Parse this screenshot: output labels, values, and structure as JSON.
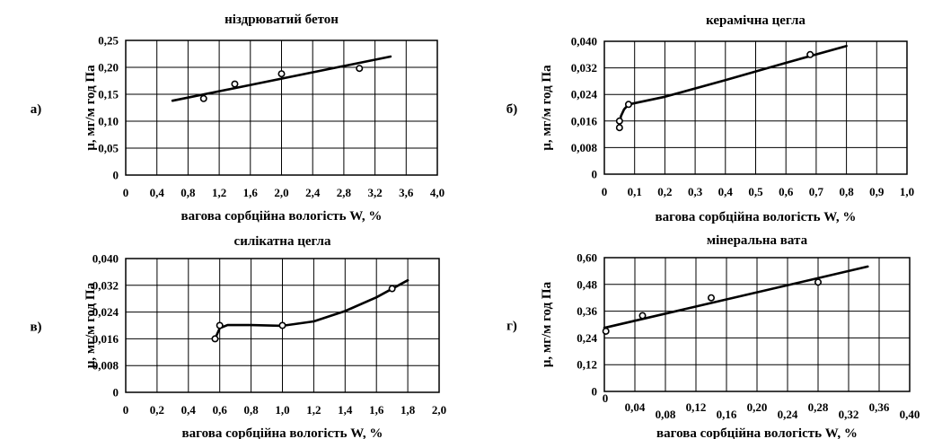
{
  "chart_data": [
    {
      "letter": "а)",
      "type": "scatter",
      "title": "ніздрюватий бетон",
      "xlabel": "вагова сорбційна вологість W, %",
      "ylabel": "μ, мг/м год Па",
      "xlim": [
        0,
        4.0
      ],
      "ylim": [
        0,
        0.25
      ],
      "x_ticks": [
        0,
        0.4,
        0.8,
        1.2,
        1.6,
        2.0,
        2.4,
        2.8,
        3.2,
        3.6,
        4.0
      ],
      "x_tick_labels": [
        "0",
        "0,4",
        "0,8",
        "1,2",
        "1,6",
        "2,0",
        "2,4",
        "2,8",
        "3,2",
        "3,6",
        "4,0"
      ],
      "y_ticks": [
        0,
        0.05,
        0.1,
        0.15,
        0.2,
        0.25
      ],
      "y_tick_labels": [
        "0",
        "0,05",
        "0,10",
        "0,15",
        "0,20",
        "0,25"
      ],
      "grid": true,
      "points": [
        {
          "x": 1.0,
          "y": 0.142
        },
        {
          "x": 1.4,
          "y": 0.169
        },
        {
          "x": 2.0,
          "y": 0.188
        },
        {
          "x": 3.0,
          "y": 0.198
        }
      ],
      "curve": [
        {
          "x": 0.6,
          "y": 0.138
        },
        {
          "x": 3.4,
          "y": 0.22
        }
      ]
    },
    {
      "letter": "б)",
      "type": "scatter",
      "title": "керамічна цегла",
      "xlabel": "вагова сорбційна вологість W, %",
      "ylabel": "μ, мг/м год Па",
      "xlim": [
        0,
        1.0
      ],
      "ylim": [
        0,
        0.04
      ],
      "x_ticks": [
        0,
        0.1,
        0.2,
        0.3,
        0.4,
        0.5,
        0.6,
        0.7,
        0.8,
        0.9,
        1.0
      ],
      "x_tick_labels": [
        "0",
        "0,1",
        "0,2",
        "0,3",
        "0,4",
        "0,5",
        "0,6",
        "0,7",
        "0,8",
        "0,9",
        "1,0"
      ],
      "y_ticks": [
        0,
        0.008,
        0.016,
        0.024,
        0.032,
        0.04
      ],
      "y_tick_labels": [
        "0",
        "0,008",
        "0,016",
        "0,024",
        "0,032",
        "0,040"
      ],
      "grid": true,
      "points": [
        {
          "x": 0.05,
          "y": 0.014
        },
        {
          "x": 0.05,
          "y": 0.016
        },
        {
          "x": 0.08,
          "y": 0.021
        },
        {
          "x": 0.68,
          "y": 0.036
        }
      ],
      "curve": [
        {
          "x": 0.05,
          "y": 0.015
        },
        {
          "x": 0.055,
          "y": 0.0175
        },
        {
          "x": 0.065,
          "y": 0.0195
        },
        {
          "x": 0.08,
          "y": 0.021
        },
        {
          "x": 0.2,
          "y": 0.0233
        },
        {
          "x": 0.4,
          "y": 0.0283
        },
        {
          "x": 0.6,
          "y": 0.0335
        },
        {
          "x": 0.8,
          "y": 0.0386
        }
      ]
    },
    {
      "letter": "в)",
      "type": "scatter",
      "title": "силікатна цегла",
      "xlabel": "вагова сорбційна вологість W, %",
      "ylabel": "μ, мг/м год Па",
      "xlim": [
        0,
        2.0
      ],
      "ylim": [
        0,
        0.04
      ],
      "x_ticks": [
        0,
        0.2,
        0.4,
        0.6,
        0.8,
        1.0,
        1.2,
        1.4,
        1.6,
        1.8,
        2.0
      ],
      "x_tick_labels": [
        "0",
        "0,2",
        "0,4",
        "0,6",
        "0,8",
        "1,0",
        "1,2",
        "1,4",
        "1,6",
        "1,8",
        "2,0"
      ],
      "y_ticks": [
        0,
        0.008,
        0.016,
        0.024,
        0.032,
        0.04
      ],
      "y_tick_labels": [
        "0",
        "0,008",
        "0,016",
        "0,024",
        "0,032",
        "0,040"
      ],
      "grid": true,
      "points": [
        {
          "x": 0.57,
          "y": 0.016
        },
        {
          "x": 0.6,
          "y": 0.02
        },
        {
          "x": 1.0,
          "y": 0.02
        },
        {
          "x": 1.7,
          "y": 0.031
        }
      ],
      "curve": [
        {
          "x": 0.57,
          "y": 0.016
        },
        {
          "x": 0.6,
          "y": 0.0192
        },
        {
          "x": 0.65,
          "y": 0.0201
        },
        {
          "x": 0.8,
          "y": 0.0201
        },
        {
          "x": 1.0,
          "y": 0.0199
        },
        {
          "x": 1.2,
          "y": 0.0212
        },
        {
          "x": 1.4,
          "y": 0.0243
        },
        {
          "x": 1.6,
          "y": 0.0284
        },
        {
          "x": 1.8,
          "y": 0.0335
        }
      ]
    },
    {
      "letter": "г)",
      "type": "scatter",
      "title": "мінеральна вата",
      "xlabel": "вагова сорбційна вологість W, %",
      "ylabel": "μ, мг/м год Па",
      "xlim": [
        0,
        0.4
      ],
      "ylim": [
        0,
        0.6
      ],
      "x_ticks": [
        0,
        0.04,
        0.08,
        0.12,
        0.16,
        0.2,
        0.24,
        0.28,
        0.32,
        0.36,
        0.4
      ],
      "x_tick_labels": [
        "0",
        "0,04",
        "0,08",
        "0,12",
        "0,16",
        "0,20",
        "0,24",
        "0,28",
        "0,32",
        "0,36",
        "0,40"
      ],
      "x_tick_staggered": true,
      "y_ticks": [
        0,
        0.12,
        0.24,
        0.36,
        0.48,
        0.6
      ],
      "y_tick_labels": [
        "0",
        "0,12",
        "0,24",
        "0,36",
        "0,48",
        "0,60"
      ],
      "grid": true,
      "points": [
        {
          "x": 0.002,
          "y": 0.27
        },
        {
          "x": 0.05,
          "y": 0.34
        },
        {
          "x": 0.14,
          "y": 0.42
        },
        {
          "x": 0.28,
          "y": 0.49
        }
      ],
      "curve": [
        {
          "x": 0.0,
          "y": 0.285
        },
        {
          "x": 0.345,
          "y": 0.56
        }
      ]
    }
  ]
}
